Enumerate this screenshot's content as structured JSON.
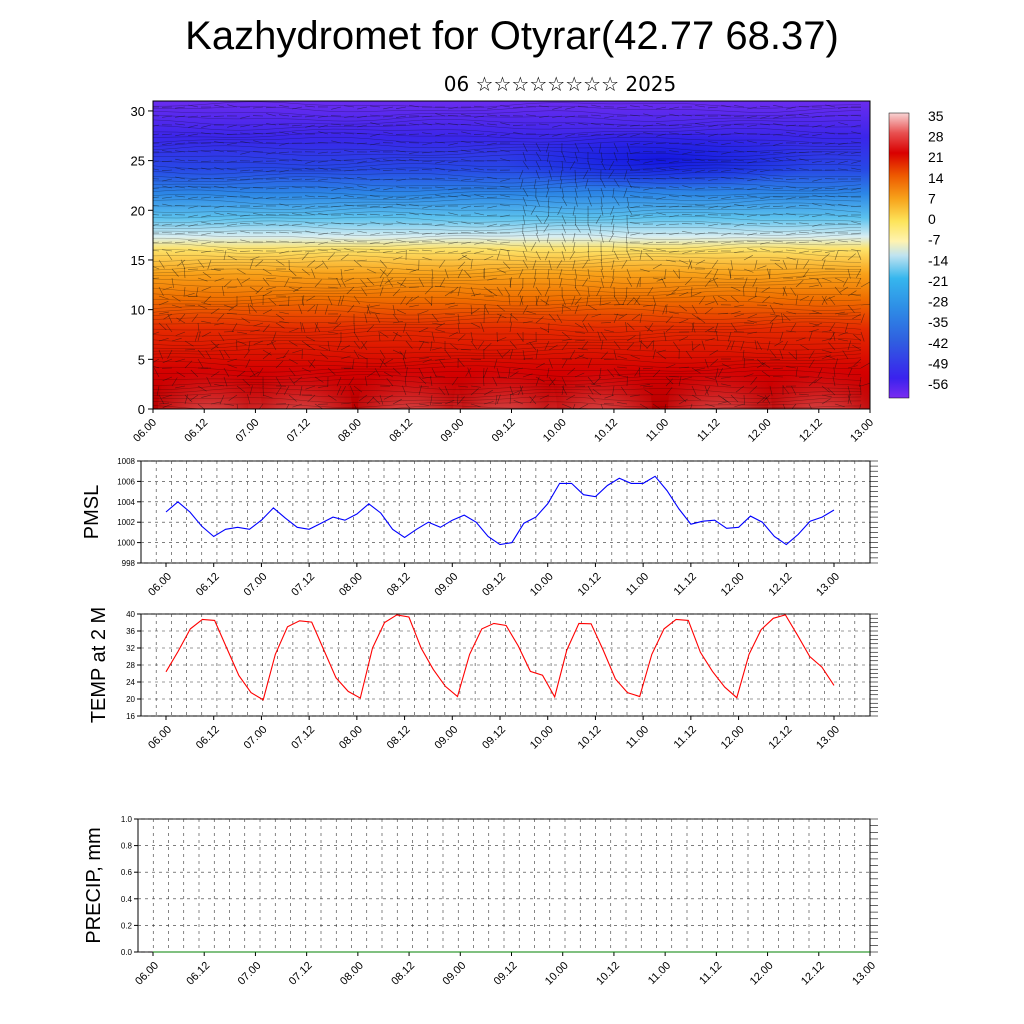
{
  "page": {
    "title": "Kazhydromet for Otyrar(42.77 68.37)",
    "subtitle": "06 ☆☆☆☆☆☆☆☆ 2025"
  },
  "chart_data": [
    {
      "type": "heatmap",
      "name": "vertical-profile",
      "x_tick_labels": [
        "06.00",
        "06.12",
        "07.00",
        "07.12",
        "08.00",
        "08.12",
        "09.00",
        "09.12",
        "10.00",
        "10.12",
        "11.00",
        "11.12",
        "12.00",
        "12.12",
        "13.00"
      ],
      "y_tick_labels": [
        "0",
        "5",
        "10",
        "15",
        "20",
        "25",
        "30"
      ],
      "ylim": [
        0,
        31
      ],
      "colorbar_labels": [
        "35",
        "28",
        "21",
        "14",
        "7",
        "0",
        "-7",
        "-14",
        "-21",
        "-28",
        "-35",
        "-42",
        "-49",
        "-56"
      ],
      "colorbar_colors": [
        "#f7c9c9",
        "#ee6a60",
        "#d90000",
        "#e83a00",
        "#f57a00",
        "#fbb01a",
        "#fde45a",
        "#fff3b0",
        "#a9d8ee",
        "#36b6ee",
        "#2e8fe6",
        "#2f5fe0",
        "#2222ec",
        "#6f2ff0"
      ],
      "vectors": true
    },
    {
      "type": "line",
      "name": "pmsl",
      "ylabel": "PMSL",
      "ylim": [
        998,
        1008
      ],
      "y_tick_labels": [
        "998",
        "1000",
        "1002",
        "1004",
        "1006",
        "1008"
      ],
      "x_tick_labels": [
        "06.00",
        "06.12",
        "07.00",
        "07.12",
        "08.00",
        "08.12",
        "09.00",
        "09.12",
        "10.00",
        "10.12",
        "11.00",
        "11.12",
        "12.00",
        "12.12",
        "13.00"
      ],
      "series": [
        {
          "color": "#0000ff",
          "values": [
            1003.0,
            1004.0,
            1003.0,
            1001.6,
            1000.6,
            1001.3,
            1001.5,
            1001.3,
            1002.2,
            1003.4,
            1002.4,
            1001.5,
            1001.3,
            1001.9,
            1002.5,
            1002.2,
            1002.8,
            1003.8,
            1002.9,
            1001.3,
            1000.5,
            1001.3,
            1002.0,
            1001.5,
            1002.2,
            1002.7,
            1002.0,
            1000.6,
            999.8,
            1000.0,
            1001.9,
            1002.5,
            1003.8,
            1005.8,
            1005.8,
            1004.7,
            1004.5,
            1005.6,
            1006.3,
            1005.8,
            1005.8,
            1006.5,
            1005.1,
            1003.3,
            1001.8,
            1002.1,
            1002.2,
            1001.4,
            1001.5,
            1002.6,
            1002.0,
            1000.6,
            999.8,
            1000.8,
            1002.1,
            1002.5,
            1003.2
          ]
        }
      ]
    },
    {
      "type": "line",
      "name": "temp-2m",
      "ylabel": "TEMP at 2 M",
      "ylim": [
        16,
        40
      ],
      "y_tick_labels": [
        "16",
        "20",
        "24",
        "28",
        "32",
        "36",
        "40"
      ],
      "x_tick_labels": [
        "06.00",
        "06.12",
        "07.00",
        "07.12",
        "08.00",
        "08.12",
        "09.00",
        "09.12",
        "10.00",
        "10.12",
        "11.00",
        "11.12",
        "12.00",
        "12.12",
        "13.00"
      ],
      "series": [
        {
          "color": "#ff0000",
          "values": [
            26.4,
            31.2,
            36.5,
            38.7,
            38.5,
            32.0,
            25.5,
            21.5,
            19.8,
            30.5,
            37.0,
            38.4,
            38.1,
            31.5,
            25.0,
            21.8,
            20.2,
            32.0,
            38.0,
            39.8,
            39.3,
            32.0,
            27.0,
            23.0,
            20.6,
            30.5,
            36.5,
            37.8,
            37.3,
            32.5,
            26.5,
            25.6,
            20.5,
            31.5,
            37.8,
            37.7,
            31.5,
            24.7,
            21.5,
            20.6,
            30.5,
            36.5,
            38.7,
            38.5,
            31.0,
            26.5,
            22.8,
            20.3,
            30.5,
            36.3,
            39.0,
            39.8,
            35.0,
            30.0,
            27.5,
            23.2
          ]
        }
      ]
    },
    {
      "type": "line",
      "name": "precip",
      "ylabel": "PRECIP, mm",
      "ylim": [
        0.0,
        1.0
      ],
      "y_tick_labels": [
        "0.0",
        "0.2",
        "0.4",
        "0.6",
        "0.8",
        "1.0"
      ],
      "x_tick_labels": [
        "06.00",
        "06.12",
        "07.00",
        "07.12",
        "08.00",
        "08.12",
        "09.00",
        "09.12",
        "10.00",
        "10.12",
        "11.00",
        "11.12",
        "12.00",
        "12.12",
        "13.00"
      ],
      "series": [
        {
          "color": "#008000",
          "values": [
            0,
            0,
            0,
            0,
            0,
            0,
            0,
            0,
            0,
            0,
            0,
            0,
            0,
            0,
            0,
            0,
            0,
            0,
            0,
            0,
            0,
            0,
            0,
            0,
            0,
            0,
            0,
            0,
            0,
            0,
            0,
            0,
            0,
            0,
            0,
            0,
            0,
            0,
            0,
            0,
            0,
            0,
            0,
            0,
            0,
            0,
            0,
            0,
            0,
            0,
            0,
            0,
            0,
            0,
            0,
            0,
            0
          ]
        }
      ]
    }
  ]
}
